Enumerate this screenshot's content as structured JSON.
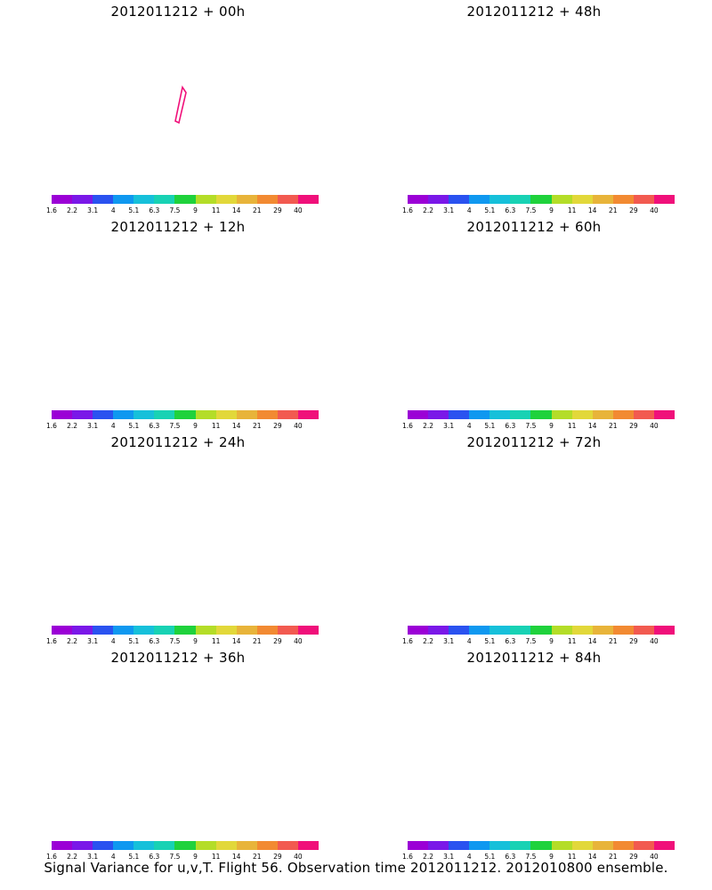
{
  "colorbar": {
    "labels": [
      "1.6",
      "2.2",
      "3.1",
      "4",
      "5.1",
      "6.3",
      "7.5",
      "9",
      "11",
      "14",
      "21",
      "29",
      "40"
    ],
    "colors": [
      "#9b00d6",
      "#7a18e8",
      "#2a52f0",
      "#0f98f0",
      "#16c0da",
      "#18d2b4",
      "#1fd23c",
      "#b4dd28",
      "#e2d83a",
      "#e8b43a",
      "#f28a32",
      "#f25a50",
      "#f0107a"
    ]
  },
  "panels": [
    {
      "title": "2012011212 + 00h",
      "spread": 0.0
    },
    {
      "title": "2012011212 + 48h",
      "spread": 0.62
    },
    {
      "title": "2012011212 + 12h",
      "spread": 0.22
    },
    {
      "title": "2012011212 + 60h",
      "spread": 0.78
    },
    {
      "title": "2012011212 + 24h",
      "spread": 0.35
    },
    {
      "title": "2012011212 + 72h",
      "spread": 0.88
    },
    {
      "title": "2012011212 + 36h",
      "spread": 0.5
    },
    {
      "title": "2012011212 + 84h",
      "spread": 1.0
    }
  ],
  "footer": "Signal Variance for u,v,T. Flight 56. Observation time 2012011212. 2012010800 ensemble."
}
